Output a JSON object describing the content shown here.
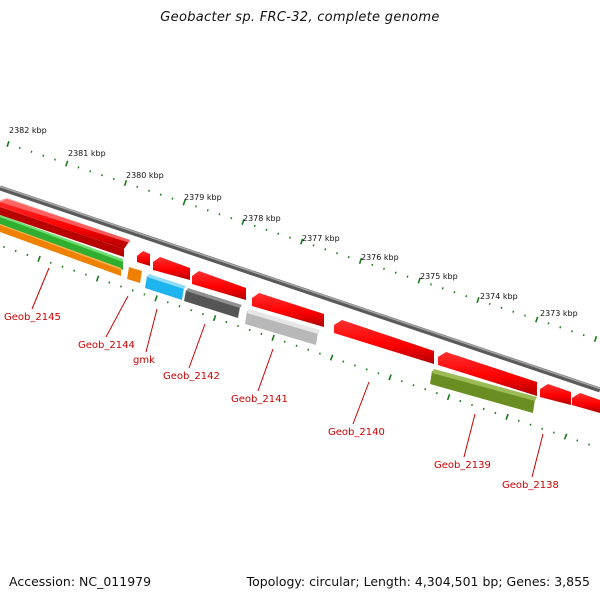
{
  "title": "Geobacter sp. FRC-32, complete genome",
  "footer": {
    "accession": "Accession: NC_011979",
    "topology": "Topology: circular; Length: 4,304,501 bp; Genes: 3,855"
  },
  "colors": {
    "backbone": "#808080",
    "forward_gene": "#ff0000",
    "tick": "#1a7a1a",
    "gene_label": "#cc0000"
  },
  "kbp_labels": [
    "2382 kbp",
    "2381 kbp",
    "2380 kbp",
    "2379 kbp",
    "2378 kbp",
    "2377 kbp",
    "2376 kbp",
    "2375 kbp",
    "2374 kbp",
    "2373 kbp"
  ],
  "genes": [
    {
      "name": "Geob_2145",
      "color": "#ff0000"
    },
    {
      "name": "Geob_2144",
      "color": "#ff8c00"
    },
    {
      "name": "gmk",
      "color": "#1eb4f0"
    },
    {
      "name": "Geob_2142",
      "color": "#555555"
    },
    {
      "name": "Geob_2141",
      "color": "#bfbfbf"
    },
    {
      "name": "Geob_2140",
      "color": "#ff0000"
    },
    {
      "name": "Geob_2139",
      "color": "#6b8e23"
    },
    {
      "name": "Geob_2138",
      "color": "#ff0000"
    }
  ]
}
